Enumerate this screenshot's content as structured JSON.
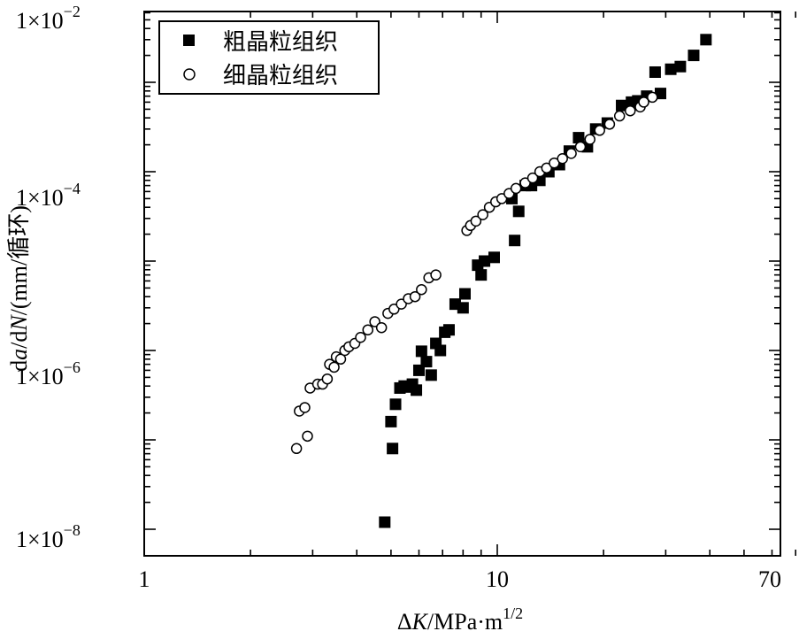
{
  "chart_data": {
    "type": "scatter",
    "xscale": "log",
    "yscale": "log",
    "xlim": [
      1,
      70
    ],
    "ylim": [
      1e-08,
      0.01
    ],
    "xticks": [
      {
        "value": 1,
        "label": "1"
      },
      {
        "value": 10,
        "label": "10"
      },
      {
        "value": 70,
        "label": "70"
      }
    ],
    "yticks": [
      {
        "value": 1e-08,
        "base": "1×10",
        "exp": "−8"
      },
      {
        "value": 1e-06,
        "base": "1×10",
        "exp": "−6"
      },
      {
        "value": 0.0001,
        "base": "1×10",
        "exp": "−4"
      },
      {
        "value": 0.01,
        "base": "1×10",
        "exp": "−2"
      }
    ],
    "xlabel": {
      "delta": "Δ",
      "var": "K",
      "unit": "/MPa·m",
      "exp": "1/2"
    },
    "ylabel": {
      "d1": "d",
      "a": "a",
      "mid": "/d",
      "N": "N",
      "unit": "/(mm/循环)"
    },
    "legend_position": "top-left",
    "series": [
      {
        "name": "粗晶粒组织",
        "marker": "filled-square",
        "points": [
          [
            4.8,
            1.2e-08
          ],
          [
            5.0,
            1.6e-07
          ],
          [
            5.05,
            8e-08
          ],
          [
            5.15,
            2.5e-07
          ],
          [
            5.3,
            3.8e-07
          ],
          [
            5.45,
            4e-07
          ],
          [
            5.6,
            3.9e-07
          ],
          [
            5.75,
            4.2e-07
          ],
          [
            5.9,
            3.6e-07
          ],
          [
            6.0,
            6e-07
          ],
          [
            6.1,
            9.8e-07
          ],
          [
            6.3,
            7.5e-07
          ],
          [
            6.5,
            5.3e-07
          ],
          [
            6.7,
            1.2e-06
          ],
          [
            6.9,
            1e-06
          ],
          [
            7.1,
            1.6e-06
          ],
          [
            7.3,
            1.7e-06
          ],
          [
            7.6,
            3.3e-06
          ],
          [
            8.0,
            3e-06
          ],
          [
            8.1,
            4.3e-06
          ],
          [
            8.8,
            9e-06
          ],
          [
            9.0,
            7e-06
          ],
          [
            9.2,
            1e-05
          ],
          [
            9.8,
            1.1e-05
          ],
          [
            11.0,
            5e-05
          ],
          [
            11.2,
            1.7e-05
          ],
          [
            11.5,
            3.6e-05
          ],
          [
            12.0,
            7e-05
          ],
          [
            12.5,
            7e-05
          ],
          [
            13.2,
            8e-05
          ],
          [
            14.0,
            0.0001
          ],
          [
            15.0,
            0.00012
          ],
          [
            16.0,
            0.00017
          ],
          [
            17.0,
            0.00024
          ],
          [
            18.0,
            0.00019
          ],
          [
            19.0,
            0.0003
          ],
          [
            20.5,
            0.00035
          ],
          [
            22.5,
            0.00055
          ],
          [
            24.0,
            0.0006
          ],
          [
            25.0,
            0.00062
          ],
          [
            26.5,
            0.0007
          ],
          [
            28.0,
            0.0013
          ],
          [
            29.0,
            0.00075
          ],
          [
            31.0,
            0.0014
          ],
          [
            33.0,
            0.0015
          ],
          [
            36.0,
            0.002
          ],
          [
            39.0,
            0.003
          ]
        ]
      },
      {
        "name": "细晶粒组织",
        "marker": "open-circle",
        "points": [
          [
            2.7,
            8e-08
          ],
          [
            2.75,
            2.1e-07
          ],
          [
            2.85,
            2.3e-07
          ],
          [
            2.9,
            1.1e-07
          ],
          [
            2.95,
            3.8e-07
          ],
          [
            3.1,
            4.2e-07
          ],
          [
            3.2,
            4.2e-07
          ],
          [
            3.3,
            4.8e-07
          ],
          [
            3.35,
            7e-07
          ],
          [
            3.45,
            6.5e-07
          ],
          [
            3.5,
            8.5e-07
          ],
          [
            3.6,
            8e-07
          ],
          [
            3.7,
            1e-06
          ],
          [
            3.8,
            1.1e-06
          ],
          [
            3.95,
            1.2e-06
          ],
          [
            4.1,
            1.4e-06
          ],
          [
            4.3,
            1.7e-06
          ],
          [
            4.5,
            2.1e-06
          ],
          [
            4.7,
            1.8e-06
          ],
          [
            4.9,
            2.6e-06
          ],
          [
            5.1,
            2.9e-06
          ],
          [
            5.35,
            3.3e-06
          ],
          [
            5.6,
            3.8e-06
          ],
          [
            5.85,
            4e-06
          ],
          [
            6.1,
            4.8e-06
          ],
          [
            6.4,
            6.5e-06
          ],
          [
            6.7,
            7e-06
          ],
          [
            8.2,
            2.2e-05
          ],
          [
            8.4,
            2.5e-05
          ],
          [
            8.7,
            2.8e-05
          ],
          [
            9.1,
            3.3e-05
          ],
          [
            9.5,
            4e-05
          ],
          [
            9.9,
            4.6e-05
          ],
          [
            10.3,
            5e-05
          ],
          [
            10.8,
            5.7e-05
          ],
          [
            11.3,
            6.5e-05
          ],
          [
            12.0,
            7.5e-05
          ],
          [
            12.6,
            8.5e-05
          ],
          [
            13.2,
            0.0001
          ],
          [
            13.8,
            0.00011
          ],
          [
            14.5,
            0.000125
          ],
          [
            15.3,
            0.00014
          ],
          [
            16.2,
            0.00016
          ],
          [
            17.2,
            0.00019
          ],
          [
            18.3,
            0.00023
          ],
          [
            19.5,
            0.00029
          ],
          [
            20.8,
            0.00034
          ],
          [
            22.2,
            0.00042
          ],
          [
            23.8,
            0.00048
          ],
          [
            25.4,
            0.00053
          ],
          [
            26.0,
            0.0006
          ],
          [
            27.5,
            0.00068
          ]
        ]
      }
    ]
  }
}
